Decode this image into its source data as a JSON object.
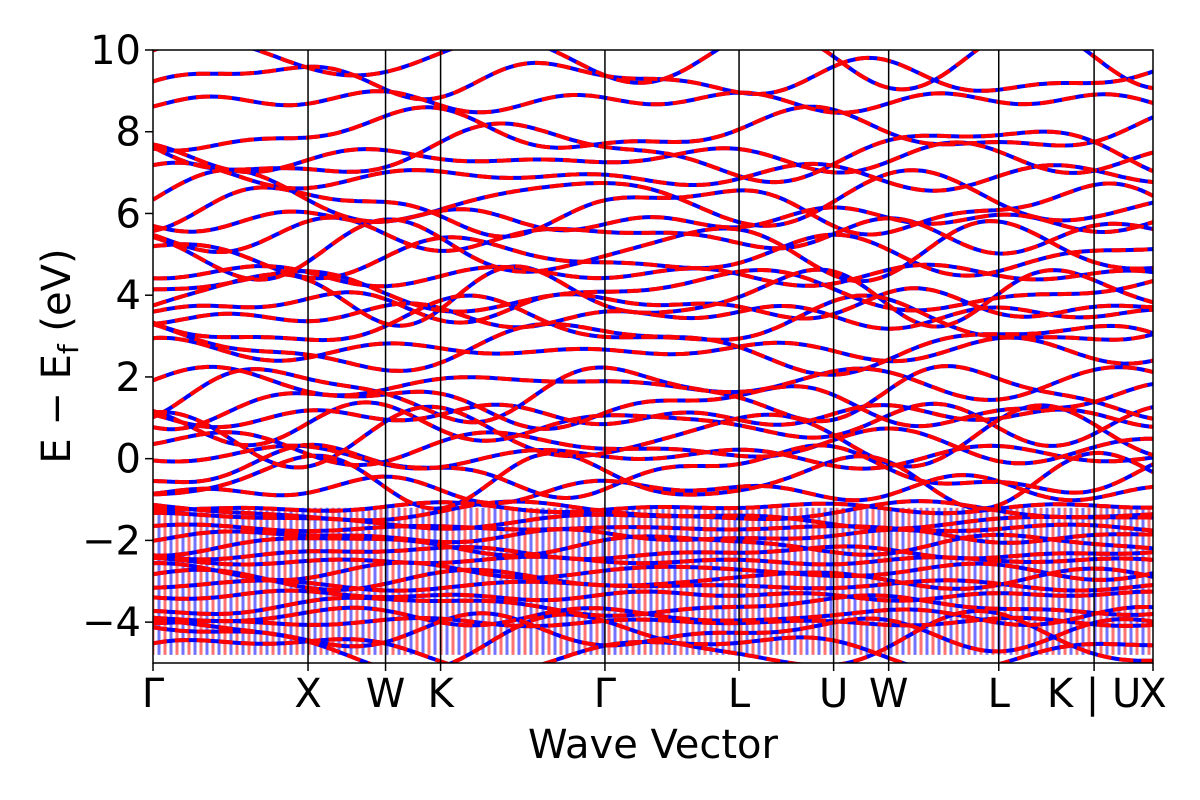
{
  "colors": {
    "spin_up": "#0000ff",
    "spin_down": "#ff0000",
    "axes": "#000000",
    "background": "#ffffff"
  },
  "chart_data": {
    "type": "line",
    "title": "",
    "xlabel": "Wave Vector",
    "ylabel_main": "E − E",
    "ylabel_sub": "f",
    "ylabel_unit": " (eV)",
    "ylim": [
      -5,
      10
    ],
    "yticks": [
      10,
      8,
      6,
      4,
      2,
      0,
      -2,
      -4
    ],
    "ytick_labels": [
      "10",
      "8",
      "6",
      "4",
      "2",
      "0",
      "−2",
      "−4"
    ],
    "xlim": [
      0,
      6.45
    ],
    "kpoints": [
      {
        "label": "Γ",
        "x": 0.0
      },
      {
        "label": "X",
        "x": 1.0
      },
      {
        "label": "W",
        "x": 1.5
      },
      {
        "label": "K",
        "x": 1.855
      },
      {
        "label": "Γ",
        "x": 2.915
      },
      {
        "label": "L",
        "x": 3.78
      },
      {
        "label": "U",
        "x": 4.39
      },
      {
        "label": "W",
        "x": 4.745
      },
      {
        "label": "L",
        "x": 5.455
      },
      {
        "label": "K | U",
        "x": 6.07
      },
      {
        "label": "X",
        "x": 6.45
      }
    ],
    "grid": false,
    "legend": "none",
    "series": [
      {
        "spin": "up",
        "band_energies_at_gamma": [
          -4.7,
          -4.5,
          -4.25,
          -4.0,
          -3.85,
          -3.6,
          -3.35,
          -3.1,
          -2.95,
          -2.75,
          -2.5,
          -2.3,
          -2.1,
          -1.9,
          -1.7,
          -1.5,
          -1.3,
          -1.2,
          -0.75,
          -0.5,
          -0.3,
          0.05,
          0.3,
          0.55,
          0.85,
          1.05,
          1.3,
          1.6,
          1.85,
          2.65,
          2.75,
          3.3,
          3.5,
          3.75,
          4.0,
          4.1,
          4.5,
          4.95,
          5.1,
          5.45,
          5.85,
          6.1,
          6.35,
          6.9,
          7.35,
          7.5,
          8.0,
          8.75,
          9.3,
          9.8
        ]
      },
      {
        "spin": "down",
        "band_energies_at_gamma": [
          -4.7,
          -4.5,
          -4.25,
          -4.0,
          -3.85,
          -3.6,
          -3.35,
          -3.1,
          -2.95,
          -2.75,
          -2.5,
          -2.3,
          -2.1,
          -1.9,
          -1.7,
          -1.5,
          -1.3,
          -1.2,
          -0.75,
          -0.5,
          -0.3,
          0.05,
          0.3,
          0.55,
          0.85,
          1.05,
          1.3,
          1.6,
          1.85,
          2.65,
          2.75,
          3.3,
          3.5,
          3.75,
          4.0,
          4.1,
          4.5,
          4.95,
          5.1,
          5.45,
          5.85,
          6.1,
          6.35,
          6.9,
          7.35,
          7.5,
          8.0,
          8.75,
          9.3,
          9.8
        ]
      }
    ]
  }
}
